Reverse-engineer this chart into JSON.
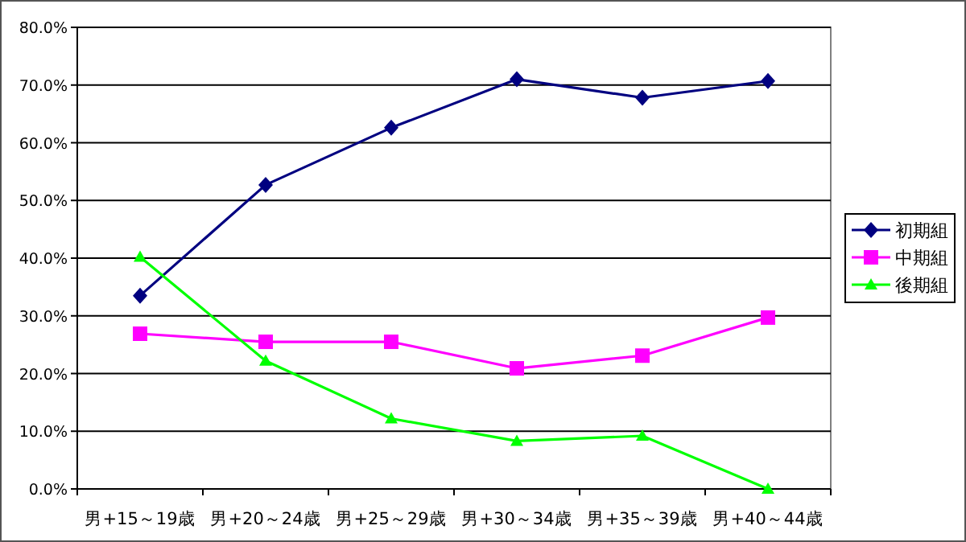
{
  "chart_data": {
    "type": "line",
    "categories": [
      "男+15～19歳",
      "男+20～24歳",
      "男+25～29歳",
      "男+30～34歳",
      "男+35～39歳",
      "男+40～44歳"
    ],
    "series": [
      {
        "name": "初期組",
        "color": "#000080",
        "marker": "diamond",
        "values": [
          33.5,
          52.7,
          62.6,
          71.0,
          67.8,
          70.7
        ]
      },
      {
        "name": "中期組",
        "color": "#ff00ff",
        "marker": "square",
        "values": [
          26.9,
          25.5,
          25.5,
          20.9,
          23.1,
          29.7
        ]
      },
      {
        "name": "後期組",
        "color": "#00ff00",
        "marker": "triangle",
        "values": [
          40.2,
          22.2,
          12.2,
          8.3,
          9.2,
          0
        ]
      }
    ],
    "ylim": [
      0,
      80
    ],
    "yticks": [
      {
        "value": 0,
        "label": "0.0%"
      },
      {
        "value": 10,
        "label": "10.0%"
      },
      {
        "value": 20,
        "label": "20.0%"
      },
      {
        "value": 30,
        "label": "30.0%"
      },
      {
        "value": 40,
        "label": "40.0%"
      },
      {
        "value": 50,
        "label": "50.0%"
      },
      {
        "value": 60,
        "label": "60.0%"
      },
      {
        "value": 70,
        "label": "70.0%"
      },
      {
        "value": 80,
        "label": "80.0%"
      }
    ],
    "grid": "y",
    "legend": "right"
  }
}
